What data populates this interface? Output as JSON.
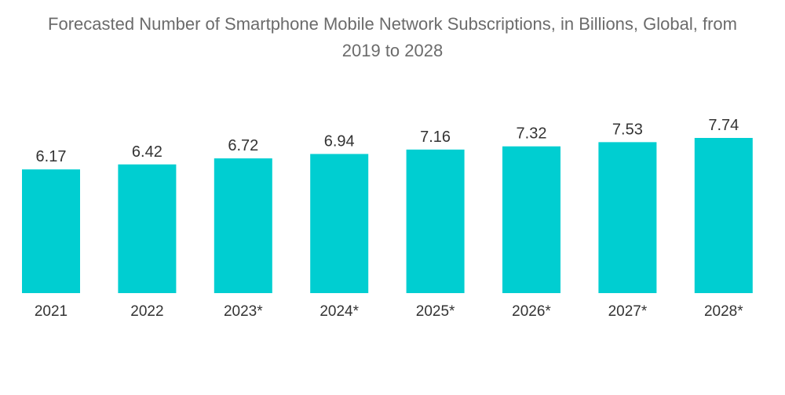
{
  "chart_data": {
    "type": "bar",
    "title_line_1": "Forecasted Number of Smartphone Mobile Network Subscriptions, in Billions, Global, from",
    "title_line_2": "2019 to 2028",
    "categories": [
      "2021",
      "2022",
      "2023*",
      "2024*",
      "2025*",
      "2026*",
      "2027*",
      "2028*"
    ],
    "values": [
      6.17,
      6.42,
      6.72,
      6.94,
      7.16,
      7.32,
      7.53,
      7.74
    ],
    "value_labels": [
      "6.17",
      "6.42",
      "6.72",
      "6.94",
      "7.16",
      "7.32",
      "7.53",
      "7.74"
    ],
    "xlabel": "",
    "ylabel": "",
    "ylim": [
      0,
      7.74
    ],
    "grid": false,
    "legend": "none",
    "bar_color": "#00CED1"
  }
}
